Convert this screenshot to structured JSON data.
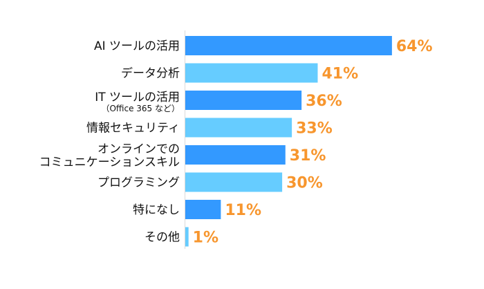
{
  "chart_data": {
    "type": "bar",
    "orientation": "horizontal",
    "categories": [
      [
        "AI ツールの活用"
      ],
      [
        "データ分析"
      ],
      [
        "IT ツールの活用",
        "（Office 365 など）"
      ],
      [
        "情報セキュリティ"
      ],
      [
        "オンラインでの",
        "コミュニケーションスキル"
      ],
      [
        "プログラミング"
      ],
      [
        "特になし"
      ],
      [
        "その他"
      ]
    ],
    "values": [
      64,
      41,
      36,
      33,
      31,
      30,
      11,
      1
    ],
    "data_labels": [
      "64%",
      "41%",
      "36%",
      "33%",
      "31%",
      "30%",
      "11%",
      "1%"
    ],
    "unit": "%",
    "xlim": [
      0,
      100
    ],
    "grid": false,
    "colors": {
      "bar_alternate_1": "#3399ff",
      "bar_alternate_2": "#66ccff",
      "data_label": "#f7962e",
      "axis": "#d9d9d9"
    }
  }
}
